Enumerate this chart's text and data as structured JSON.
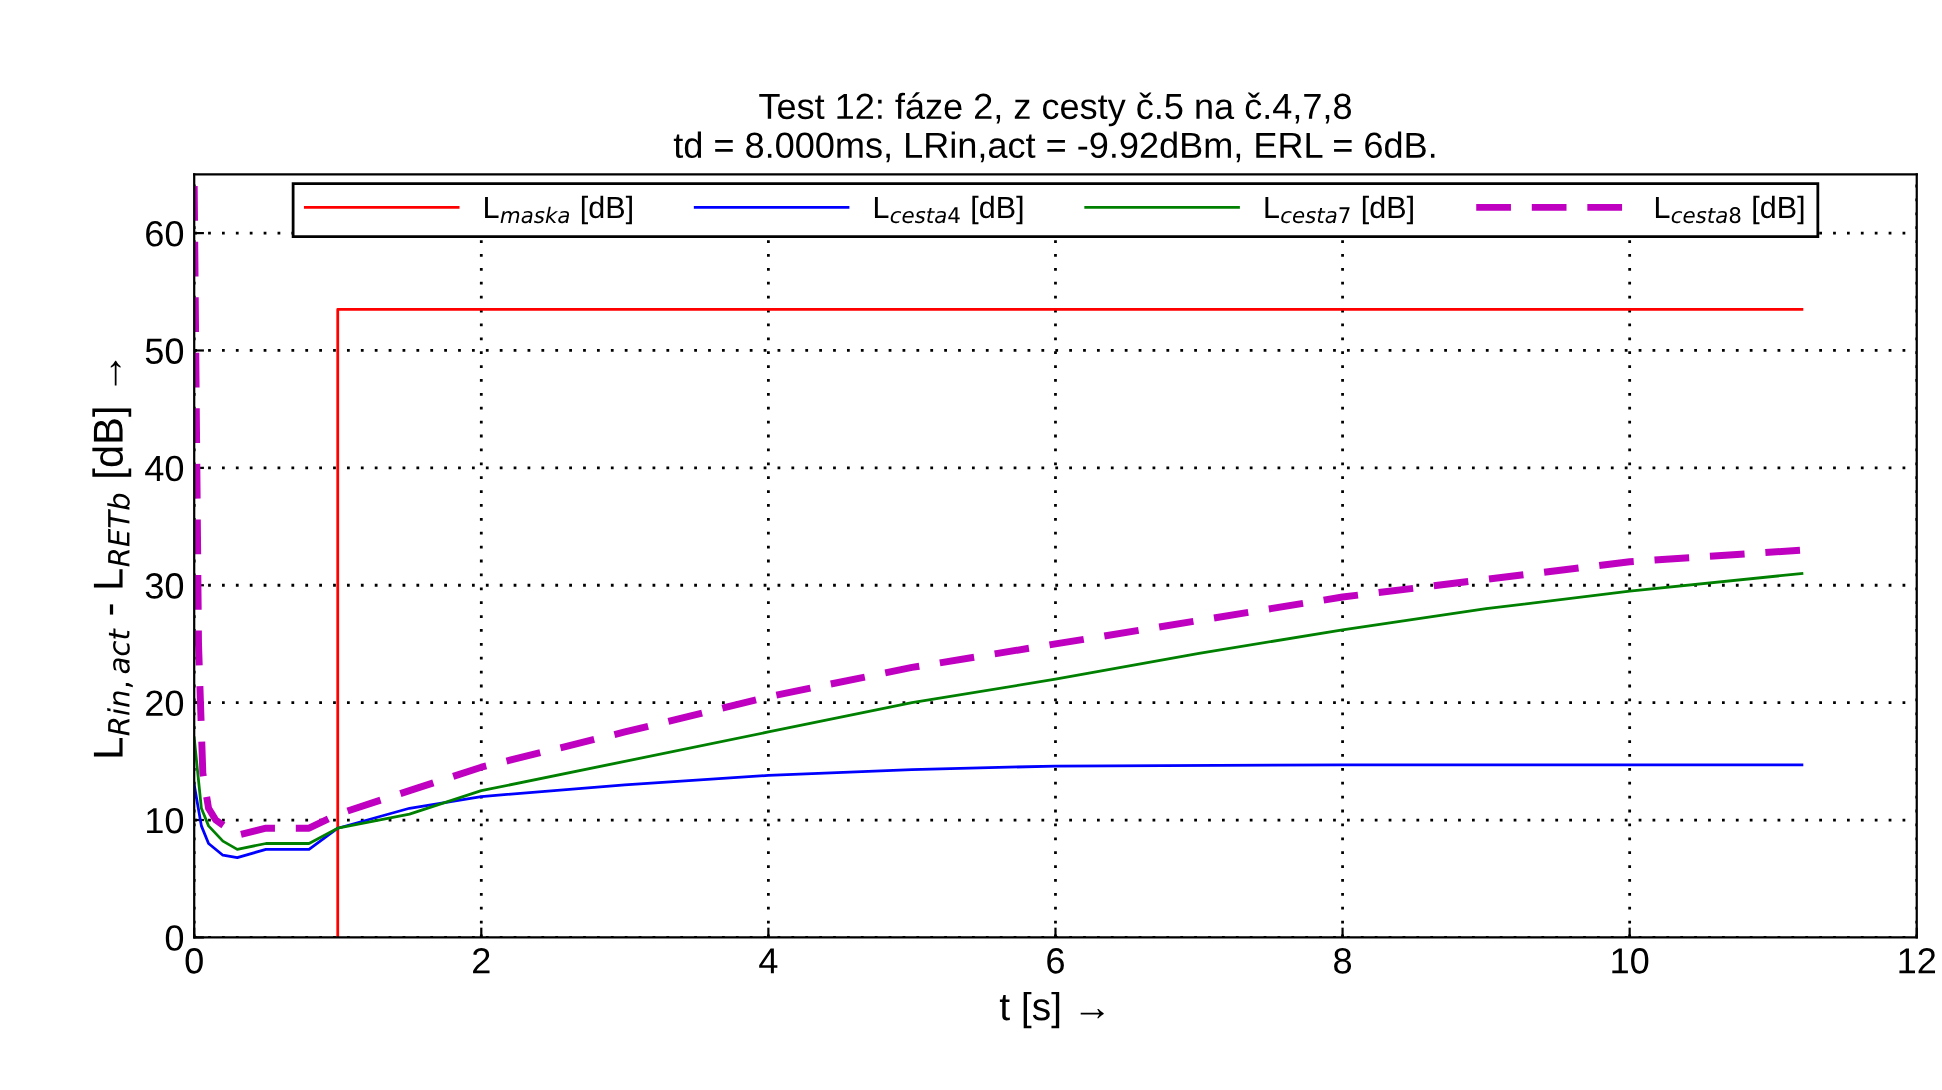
{
  "chart_data": {
    "type": "line",
    "title": "Test 12: fáze 2, z cesty č.5 na č.4,7,8\ntd = 8.000ms, LRin,act = -9.92dBm, ERL = 6dB.",
    "xlabel": "t [s] →",
    "ylabel": "L$_{Rin,act}$ - L$_{RETb}$ [dB] →",
    "xlim": [
      0,
      12
    ],
    "ylim": [
      0,
      65
    ],
    "xticks": [
      0,
      2,
      4,
      6,
      8,
      10,
      12
    ],
    "yticks": [
      0,
      10,
      20,
      30,
      40,
      50,
      60
    ],
    "grid": true,
    "legend": "top",
    "series": [
      {
        "name": "L$_{maska}$ [dB]",
        "color": "#ff0000",
        "x": [
          1,
          1,
          11.2
        ],
        "values": [
          0,
          53.5,
          53.5
        ],
        "line_style": "solid"
      },
      {
        "name": "L$_{cesta4}$ [dB]",
        "color": "#0000ff",
        "x": [
          0,
          0.05,
          0.1,
          0.2,
          0.3,
          0.5,
          0.8,
          1.0,
          1.5,
          2,
          3,
          4,
          5,
          6,
          8,
          11.2
        ],
        "values": [
          13,
          9.5,
          8,
          7,
          6.8,
          7.5,
          7.5,
          9.3,
          11,
          12,
          13,
          13.8,
          14.3,
          14.6,
          14.7,
          14.7
        ],
        "line_style": "solid"
      },
      {
        "name": "L$_{cesta7}$ [dB]",
        "color": "#008000",
        "x": [
          0,
          0.05,
          0.1,
          0.2,
          0.3,
          0.5,
          0.8,
          1.0,
          1.5,
          2,
          3,
          4,
          5,
          6,
          7,
          8,
          9,
          10,
          11.2
        ],
        "values": [
          17,
          11,
          9.5,
          8.2,
          7.5,
          8,
          8,
          9.3,
          10.5,
          12.5,
          15,
          17.5,
          20,
          22,
          24.2,
          26.2,
          28,
          29.5,
          31
        ],
        "line_style": "solid"
      },
      {
        "name": "L$_{cesta8}$ [dB]",
        "color": "#c000c0",
        "x": [
          0,
          0.03,
          0.06,
          0.1,
          0.15,
          0.3,
          0.5,
          0.8,
          1.0,
          1.5,
          2,
          3,
          4,
          5,
          6,
          7,
          8,
          9,
          10,
          11.2
        ],
        "values": [
          64,
          25,
          14,
          11,
          10,
          8.7,
          9.3,
          9.3,
          10.5,
          12.5,
          14.5,
          17.5,
          20.5,
          23,
          25,
          27,
          29,
          30.5,
          32,
          33
        ],
        "line_style": "dashed"
      }
    ]
  }
}
